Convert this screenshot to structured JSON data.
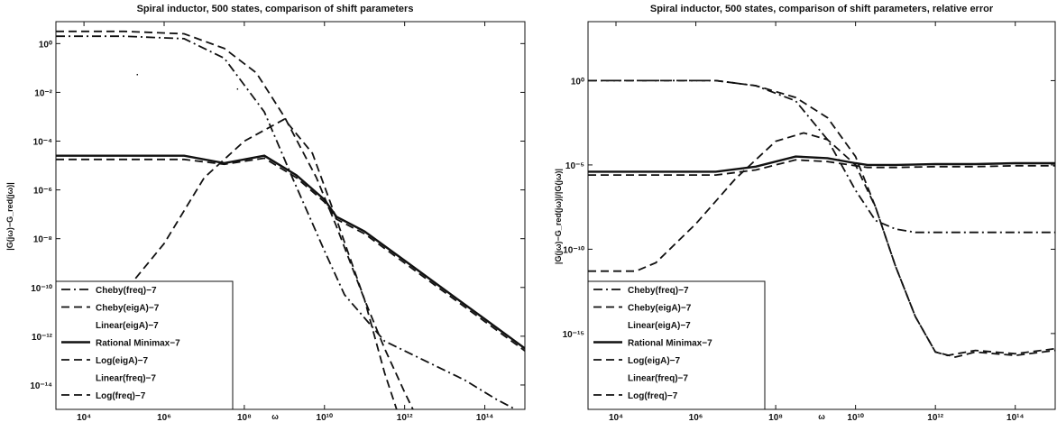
{
  "chart_data": [
    {
      "type": "line",
      "title": "Spiral inductor, 500 states, comparison of shift parameters",
      "xlabel": "ω",
      "ylabel": "|G(jω)−G_red(jω)|",
      "xscale": "log",
      "yscale": "log",
      "xlim_exp": [
        3.3,
        15
      ],
      "ylim_exp": [
        -15,
        0.9
      ],
      "x_ticks": [
        {
          "exp": 4,
          "label": "10⁴"
        },
        {
          "exp": 6,
          "label": "10⁶"
        },
        {
          "exp": 8,
          "label": "10⁸"
        },
        {
          "exp": 10,
          "label": "10¹⁰"
        },
        {
          "exp": 12,
          "label": "10¹²"
        },
        {
          "exp": 14,
          "label": "10¹⁴"
        }
      ],
      "y_ticks": [
        {
          "exp": 0,
          "label": "10⁰"
        },
        {
          "exp": -2,
          "label": "10⁻²"
        },
        {
          "exp": -4,
          "label": "10⁻⁴"
        },
        {
          "exp": -6,
          "label": "10⁻⁶"
        },
        {
          "exp": -8,
          "label": "10⁻⁸"
        },
        {
          "exp": -10,
          "label": "10⁻¹⁰"
        },
        {
          "exp": -12,
          "label": "10⁻¹²"
        },
        {
          "exp": -14,
          "label": "10⁻¹⁴"
        }
      ],
      "grid": false,
      "legend_position": "bottom-left",
      "series": [
        {
          "name": "Cheby(freq)−7",
          "style": "dashdot",
          "x_exp": [
            3.3,
            5,
            6.5,
            7.5,
            8.5,
            9.2,
            10,
            10.5,
            11.5,
            12.5,
            13.5,
            14.3,
            15
          ],
          "y_exp": [
            0.3,
            0.3,
            0.2,
            -0.6,
            -2.8,
            -5.5,
            -8.5,
            -10.3,
            -12.2,
            -13,
            -13.8,
            -14.6,
            -15.2
          ]
        },
        {
          "name": "Cheby(eigA)−7",
          "style": "dashed",
          "x_exp": [
            3.3,
            5,
            6.5,
            7.5,
            8.3,
            9,
            9.8,
            10.3,
            11,
            11.5,
            12,
            12.5
          ],
          "y_exp": [
            0.5,
            0.5,
            0.4,
            -0.2,
            -1.2,
            -3,
            -5.5,
            -7.5,
            -10.5,
            -12.5,
            -14.3,
            -16
          ]
        },
        {
          "name": "Rational Minimax−7",
          "style": "solid",
          "x_exp": [
            3.3,
            5,
            6.5,
            7.5,
            8.5,
            9.3,
            10,
            10.3,
            11,
            12,
            13,
            14,
            15
          ],
          "y_exp": [
            -4.6,
            -4.6,
            -4.6,
            -4.9,
            -4.6,
            -5.4,
            -6.4,
            -7.1,
            -7.7,
            -8.9,
            -10.1,
            -11.3,
            -12.5
          ]
        },
        {
          "name": "Log(eigA)−7",
          "style": "dashed",
          "x_exp": [
            3.3,
            4.5,
            5,
            6,
            7,
            8,
            9,
            9.7,
            10.3,
            11,
            11.5,
            12
          ],
          "y_exp": [
            -10.6,
            -10.6,
            -10.2,
            -8.2,
            -5.5,
            -4,
            -3.1,
            -4.5,
            -7.2,
            -10.5,
            -13.5,
            -16
          ]
        },
        {
          "name": "Log(freq)−7",
          "style": "dashed",
          "x_exp": [
            3.3,
            5,
            6.5,
            7.5,
            8.5,
            9.3,
            10,
            10.3,
            11,
            12,
            13,
            14,
            15
          ],
          "y_exp": [
            -4.75,
            -4.75,
            -4.75,
            -4.95,
            -4.7,
            -5.5,
            -6.5,
            -7.2,
            -7.8,
            -9,
            -10.2,
            -11.4,
            -12.6
          ]
        }
      ],
      "annotations": [
        {
          "exp_x": 5.3,
          "exp_y": -1.3,
          "text": "."
        },
        {
          "exp_x": 7.8,
          "exp_y": -1.9,
          "text": "."
        }
      ]
    },
    {
      "type": "line",
      "title": "Spiral inductor, 500 states, comparison of shift parameters, relative error",
      "xlabel": "ω",
      "ylabel": "|G(jω)−G_red(jω)|/|G(jω)|",
      "xscale": "log",
      "yscale": "log",
      "xlim_exp": [
        3.3,
        15
      ],
      "ylim_exp": [
        -19.5,
        3.5
      ],
      "x_ticks": [
        {
          "exp": 4,
          "label": "10⁴"
        },
        {
          "exp": 6,
          "label": "10⁶"
        },
        {
          "exp": 8,
          "label": "10⁸"
        },
        {
          "exp": 10,
          "label": "10¹⁰"
        },
        {
          "exp": 12,
          "label": "10¹²"
        },
        {
          "exp": 14,
          "label": "10¹⁴"
        }
      ],
      "y_ticks": [
        {
          "exp": 0,
          "label": "10⁰"
        },
        {
          "exp": -5,
          "label": "10⁻⁵"
        },
        {
          "exp": -10,
          "label": "10⁻¹⁰"
        },
        {
          "exp": -15,
          "label": "10⁻¹⁵"
        }
      ],
      "grid": false,
      "legend_position": "bottom-left",
      "series": [
        {
          "name": "Cheby(freq)−7",
          "style": "dashdot",
          "x_exp": [
            3.3,
            5,
            6.5,
            7.5,
            8.5,
            9.3,
            10,
            10.5,
            11,
            11.5,
            12,
            13,
            15
          ],
          "y_exp": [
            0,
            0,
            0,
            -0.3,
            -1.2,
            -3.5,
            -6.5,
            -8.3,
            -8.8,
            -9,
            -9,
            -9,
            -9
          ]
        },
        {
          "name": "Cheby(eigA)−7",
          "style": "dashed",
          "x_exp": [
            3.3,
            5,
            6.5,
            7.5,
            8.5,
            9.3,
            10,
            10.5,
            11,
            11.5,
            12,
            12.3,
            13,
            14,
            15
          ],
          "y_exp": [
            0,
            0,
            0,
            -0.3,
            -1,
            -2.2,
            -4.5,
            -7.5,
            -11,
            -14,
            -16.1,
            -16.3,
            -16,
            -16.2,
            -15.9
          ]
        },
        {
          "name": "Rational Minimax−7",
          "style": "solid",
          "x_exp": [
            3.3,
            5,
            6.5,
            7.5,
            8.5,
            9.3,
            10,
            10.3,
            11,
            12,
            13,
            14,
            15
          ],
          "y_exp": [
            -5.4,
            -5.4,
            -5.4,
            -5.1,
            -4.5,
            -4.6,
            -4.9,
            -5,
            -5,
            -4.95,
            -4.95,
            -4.9,
            -4.9
          ]
        },
        {
          "name": "Log(eigA)−7",
          "style": "dashed",
          "x_exp": [
            3.3,
            4.5,
            5,
            6,
            7,
            8,
            8.7,
            9.3,
            10,
            10.5,
            11,
            11.5,
            12,
            12.5,
            13,
            14,
            15
          ],
          "y_exp": [
            -11.3,
            -11.3,
            -10.8,
            -8.5,
            -5.8,
            -3.6,
            -3.1,
            -3.5,
            -5,
            -7.5,
            -11,
            -14,
            -16.1,
            -16.4,
            -16.1,
            -16.3,
            -16
          ]
        },
        {
          "name": "Log(freq)−7",
          "style": "dashed",
          "x_exp": [
            3.3,
            5,
            6.5,
            7.5,
            8.5,
            9.3,
            10,
            10.3,
            11,
            12,
            13,
            14,
            15
          ],
          "y_exp": [
            -5.6,
            -5.6,
            -5.6,
            -5.3,
            -4.7,
            -4.8,
            -5.05,
            -5.15,
            -5.15,
            -5.1,
            -5.1,
            -5.05,
            -5.05
          ]
        }
      ],
      "annotations": []
    }
  ],
  "legend_entries": [
    {
      "text": "Cheby(freq)−7",
      "style": "dashdot"
    },
    {
      "text": "Cheby(eigA)−7",
      "style": "dashed"
    },
    {
      "text": "Linear(eigA)−7",
      "style": "none"
    },
    {
      "text": "Rational Minimax−7",
      "style": "solid"
    },
    {
      "text": "Log(eigA)−7",
      "style": "dashed"
    },
    {
      "text": "Linear(freq)−7",
      "style": "none"
    },
    {
      "text": "Log(freq)−7",
      "style": "dashed"
    }
  ]
}
